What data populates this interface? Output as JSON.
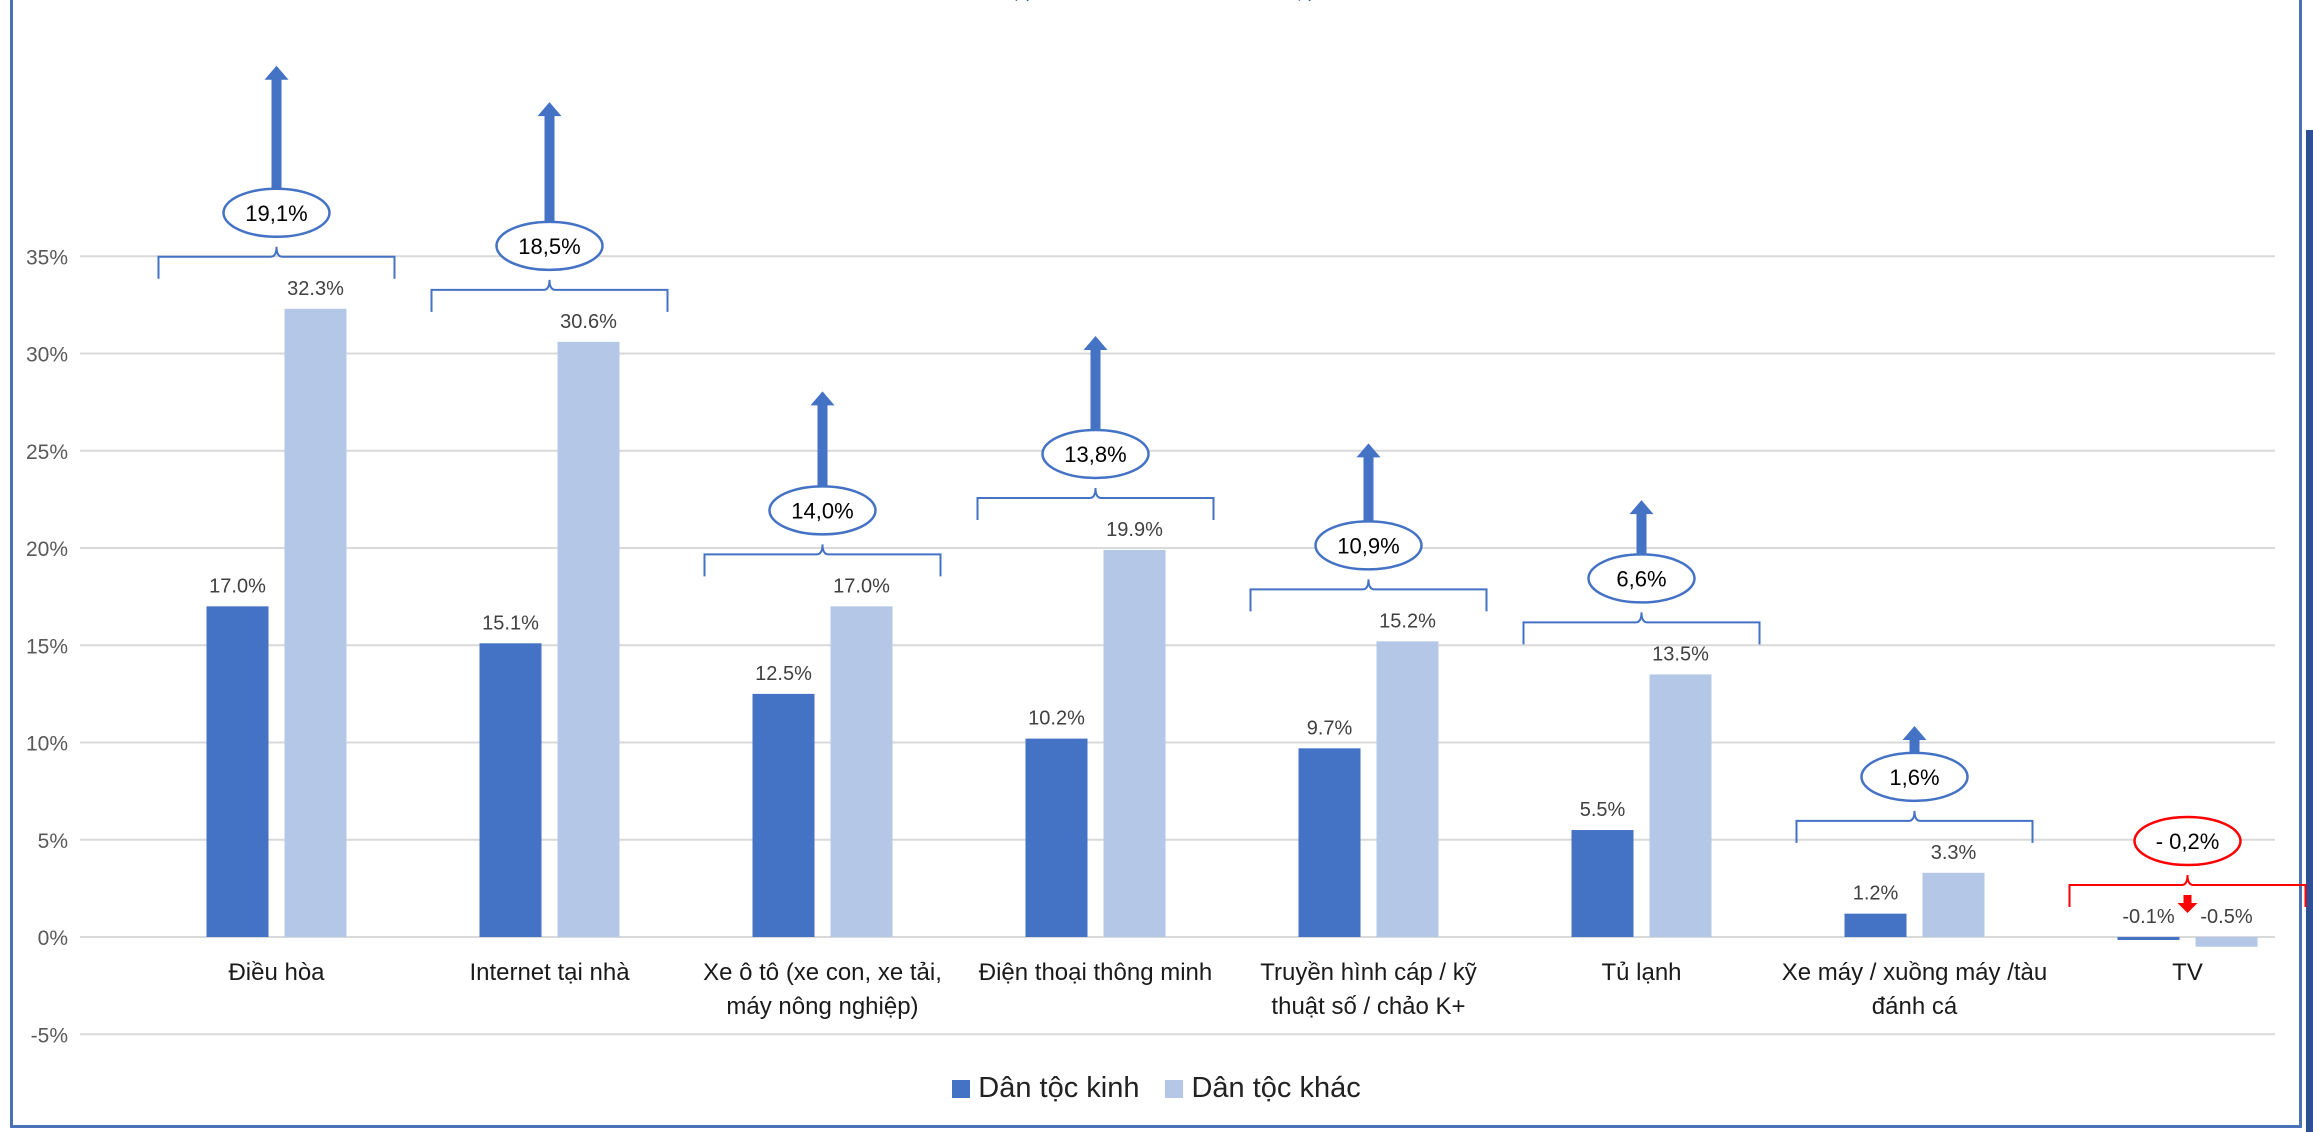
{
  "chart_data": {
    "type": "bar",
    "categories": [
      [
        "Điều hòa"
      ],
      [
        "Internet tại nhà"
      ],
      [
        "Xe ô tô (xe con, xe tải,",
        "máy nông nghiệp)"
      ],
      [
        "Điện thoại thông minh"
      ],
      [
        "Truyền hình cáp / kỹ",
        "thuật số / chảo K+"
      ],
      [
        "Tủ lạnh"
      ],
      [
        "Xe máy / xuồng máy /tàu",
        "đánh cá"
      ],
      [
        "TV"
      ]
    ],
    "series": [
      {
        "name": "Dân tộc kinh",
        "color": "#4472c4",
        "values": [
          17.0,
          15.1,
          12.5,
          10.2,
          9.7,
          5.5,
          1.2,
          -0.1
        ],
        "labels": [
          "17.0%",
          "15.1%",
          "12.5%",
          "10.2%",
          "9.7%",
          "5.5%",
          "1.2%",
          "-0.1%"
        ]
      },
      {
        "name": "Dân tộc khác",
        "color": "#b4c7e7",
        "values": [
          32.3,
          30.6,
          17.0,
          19.9,
          15.2,
          13.5,
          3.3,
          -0.5
        ],
        "labels": [
          "32.3%",
          "30.6%",
          "17.0%",
          "19.9%",
          "15.2%",
          "13.5%",
          "3.3%",
          "-0.5%"
        ]
      }
    ],
    "ylim": [
      -5,
      35
    ],
    "yticks": [
      "-5%",
      "0%",
      "5%",
      "10%",
      "15%",
      "20%",
      "25%",
      "30%",
      "35%"
    ],
    "grid": true,
    "legend_position": "bottom",
    "annotations": [
      {
        "text": "19,1%",
        "direction": "up",
        "color": "#4472c4",
        "value": 19.1
      },
      {
        "text": "18,5%",
        "direction": "up",
        "color": "#4472c4",
        "value": 18.5
      },
      {
        "text": "14,0%",
        "direction": "up",
        "color": "#4472c4",
        "value": 14.0
      },
      {
        "text": "13,8%",
        "direction": "up",
        "color": "#4472c4",
        "value": 13.8
      },
      {
        "text": "10,9%",
        "direction": "up",
        "color": "#4472c4",
        "value": 10.9
      },
      {
        "text": "6,6%",
        "direction": "up",
        "color": "#4472c4",
        "value": 6.6
      },
      {
        "text": "1,6%",
        "direction": "up",
        "color": "#4472c4",
        "value": 1.6
      },
      {
        "text": "- 0,2%",
        "direction": "down",
        "color": "#ff0000",
        "value": -0.2
      }
    ]
  }
}
